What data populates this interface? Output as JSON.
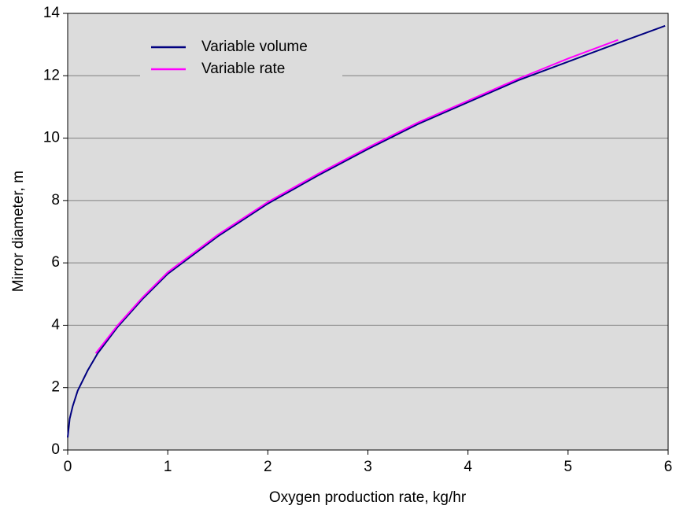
{
  "chart_data": {
    "type": "line",
    "x_label": "Oxygen production rate, kg/hr",
    "y_label": "Mirror diameter, m",
    "xlim": [
      0,
      6
    ],
    "ylim": [
      0,
      14
    ],
    "xticks": [
      0,
      1,
      2,
      3,
      4,
      5,
      6
    ],
    "yticks": [
      0,
      2,
      4,
      6,
      8,
      10,
      12,
      14
    ],
    "grid": true,
    "legend": "upper left",
    "series": [
      {
        "name": "Variable volume",
        "color": "#000080",
        "x": [
          0,
          0.02,
          0.05,
          0.1,
          0.2,
          0.3,
          0.5,
          0.75,
          1,
          1.5,
          2,
          2.5,
          3,
          3.5,
          4,
          4.5,
          5,
          5.5,
          5.97
        ],
        "values": [
          0.4,
          1.0,
          1.4,
          1.9,
          2.55,
          3.1,
          3.95,
          4.85,
          5.65,
          6.85,
          7.9,
          8.8,
          9.65,
          10.45,
          11.15,
          11.85,
          12.45,
          13.05,
          13.6
        ]
      },
      {
        "name": "Variable rate",
        "color": "#ff00ff",
        "x": [
          0.28,
          0.5,
          0.75,
          1,
          1.5,
          2,
          2.5,
          3,
          3.5,
          4,
          4.5,
          5,
          5.5
        ],
        "values": [
          3.1,
          4.0,
          4.9,
          5.7,
          6.9,
          7.95,
          8.85,
          9.7,
          10.5,
          11.2,
          11.9,
          12.55,
          13.15
        ]
      }
    ]
  }
}
